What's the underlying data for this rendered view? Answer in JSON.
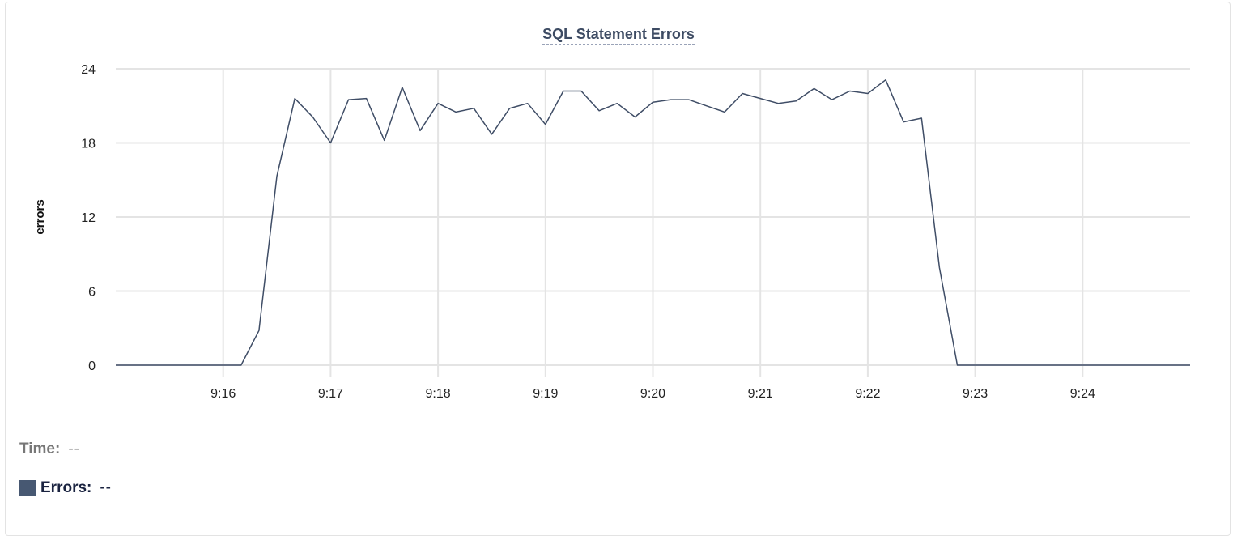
{
  "chart_data": {
    "type": "line",
    "title": "SQL Statement Errors",
    "ylabel": "errors",
    "xlabel": "",
    "ylim": [
      0,
      24
    ],
    "yticks": [
      0,
      6,
      12,
      18,
      24
    ],
    "xlim": [
      "9:15:00",
      "9:25:00"
    ],
    "xticks": [
      "9:16",
      "9:17",
      "9:18",
      "9:19",
      "9:20",
      "9:21",
      "9:22",
      "9:23",
      "9:24"
    ],
    "grid": true,
    "line_color": "#3f4d66",
    "x_start": "9:15:00",
    "x_interval_seconds": 10,
    "series": [
      {
        "values": [
          0,
          0,
          0,
          0,
          0,
          0,
          0,
          0,
          2.8,
          15.3,
          21.6,
          20.1,
          18.0,
          21.5,
          21.6,
          18.2,
          22.5,
          19.0,
          21.2,
          20.5,
          20.8,
          18.7,
          20.8,
          21.2,
          19.5,
          22.2,
          22.2,
          20.6,
          21.2,
          20.1,
          21.3,
          21.5,
          21.5,
          21.0,
          20.5,
          22.0,
          21.6,
          21.2,
          21.4,
          22.4,
          21.5,
          22.2,
          22.0,
          23.1,
          19.7,
          20.0,
          7.9,
          0,
          0,
          0,
          0,
          0,
          0,
          0,
          0,
          0,
          0,
          0,
          0,
          0,
          0
        ]
      }
    ]
  },
  "legend": {
    "time_label": "Time:",
    "time_value": "--",
    "errors_label": "Errors:",
    "errors_value": "--",
    "errors_color": "#475872"
  }
}
